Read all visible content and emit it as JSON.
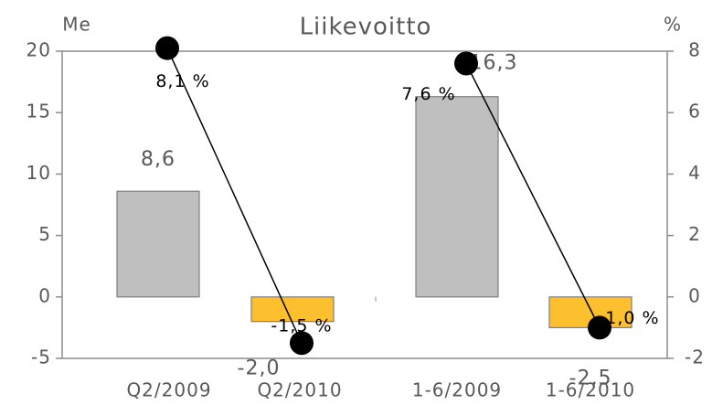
{
  "chart_data": {
    "type": "bar",
    "title": "Liikevoitto",
    "y_label": "Me",
    "y2_label": "%",
    "categories": [
      "Q2/2009",
      "Q2/2010",
      "1-6/2009",
      "1-6/2010"
    ],
    "series": [
      {
        "name": "Liikevoitto",
        "type": "bar",
        "colors": [
          "#bfbfbf",
          "#fcc02e",
          "#bfbfbf",
          "#fcc02e"
        ],
        "values": [
          8.6,
          -2.0,
          16.3,
          -2.5
        ],
        "value_labels": [
          "8,6",
          "-2,0",
          "16,3",
          "-2,5"
        ]
      },
      {
        "name": "%",
        "type": "line",
        "axis": "y2",
        "color": "#000000",
        "values": [
          8.1,
          -1.5,
          7.6,
          -1.0
        ],
        "value_labels": [
          "8,1 %",
          "-1,5 %",
          "7,6 %",
          "-1,0 %"
        ]
      }
    ],
    "ylim": [
      -5,
      20
    ],
    "yticks": [
      -5,
      0,
      5,
      10,
      15,
      20
    ],
    "y2lim": [
      -2,
      8
    ],
    "y2ticks": [
      -2,
      0,
      2,
      4,
      6,
      8
    ]
  }
}
